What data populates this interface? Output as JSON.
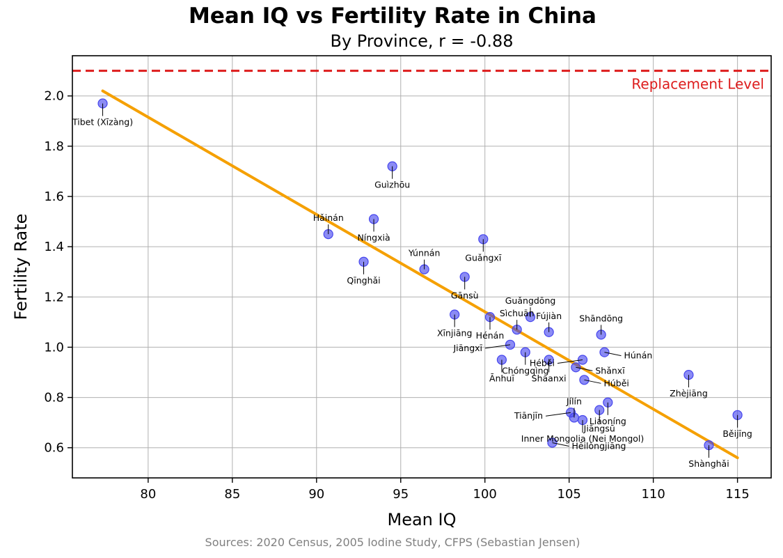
{
  "colors": {
    "points": "#4444ee",
    "trend": "#f5a000",
    "reference": "#dd1c1c",
    "grid": "#b0b0b0",
    "source": "#808080"
  },
  "chart_data": {
    "type": "scatter",
    "title": "Mean IQ vs Fertility Rate in China",
    "subtitle": "By Province, r = -0.88",
    "xlabel": "Mean IQ",
    "ylabel": "Fertility Rate",
    "xlim": [
      75.5,
      117
    ],
    "ylim": [
      0.48,
      2.16
    ],
    "xticks": [
      80,
      85,
      90,
      95,
      100,
      105,
      110,
      115
    ],
    "yticks": [
      0.6,
      0.8,
      1.0,
      1.2,
      1.4,
      1.6,
      1.8,
      2.0
    ],
    "grid": true,
    "reference_line": {
      "y": 2.1,
      "label": "Replacement Level",
      "style": "dashed"
    },
    "trend_line": {
      "x": [
        77.3,
        115
      ],
      "y": [
        2.02,
        0.56
      ]
    },
    "source": "Sources: 2020 Census, 2005 Iodine Study, CFPS (Sebastian Jensen)",
    "points": [
      {
        "name": "Tibet (Xīzàng)",
        "x": 77.3,
        "y": 1.97,
        "label_pos": "below"
      },
      {
        "name": "Guìzhōu",
        "x": 94.5,
        "y": 1.72,
        "label_pos": "below"
      },
      {
        "name": "Hǎinán",
        "x": 90.7,
        "y": 1.45,
        "label_pos": "above"
      },
      {
        "name": "Níngxià",
        "x": 93.4,
        "y": 1.51,
        "label_pos": "below"
      },
      {
        "name": "Qīnghǎi",
        "x": 92.8,
        "y": 1.34,
        "label_pos": "below"
      },
      {
        "name": "Yúnnán",
        "x": 96.4,
        "y": 1.31,
        "label_pos": "above"
      },
      {
        "name": "Guǎngxī",
        "x": 99.9,
        "y": 1.43,
        "label_pos": "below"
      },
      {
        "name": "Gānsù",
        "x": 98.8,
        "y": 1.28,
        "label_pos": "below"
      },
      {
        "name": "Xīnjiāng",
        "x": 98.2,
        "y": 1.13,
        "label_pos": "below"
      },
      {
        "name": "Hénán",
        "x": 100.3,
        "y": 1.12,
        "label_pos": "below"
      },
      {
        "name": "Sìchuān",
        "x": 101.9,
        "y": 1.07,
        "label_pos": "above"
      },
      {
        "name": "Guǎngdōng",
        "x": 102.7,
        "y": 1.12,
        "label_pos": "above"
      },
      {
        "name": "Fújiàn",
        "x": 103.8,
        "y": 1.06,
        "label_pos": "above"
      },
      {
        "name": "Shāndōng",
        "x": 106.9,
        "y": 1.05,
        "label_pos": "above"
      },
      {
        "name": "Jiāngxī",
        "x": 101.5,
        "y": 1.01,
        "label_pos": "left"
      },
      {
        "name": "Húnán",
        "x": 107.1,
        "y": 0.98,
        "label_pos": "right"
      },
      {
        "name": "Chóngqìng",
        "x": 102.4,
        "y": 0.98,
        "label_pos": "below"
      },
      {
        "name": "Ānhuī",
        "x": 101.0,
        "y": 0.95,
        "label_pos": "below"
      },
      {
        "name": "Shaanxi",
        "x": 103.8,
        "y": 0.95,
        "label_pos": "below"
      },
      {
        "name": "Héběi",
        "x": 105.8,
        "y": 0.95,
        "label_pos": "left"
      },
      {
        "name": "Shǎnxī",
        "x": 105.4,
        "y": 0.92,
        "label_pos": "right"
      },
      {
        "name": "Húběi",
        "x": 105.9,
        "y": 0.87,
        "label_pos": "right"
      },
      {
        "name": "Zhèjiāng",
        "x": 112.1,
        "y": 0.89,
        "label_pos": "below"
      },
      {
        "name": "Liáoníng",
        "x": 107.3,
        "y": 0.78,
        "label_pos": "below"
      },
      {
        "name": "Jiāngsū",
        "x": 106.8,
        "y": 0.75,
        "label_pos": "below"
      },
      {
        "name": "Jílín",
        "x": 105.3,
        "y": 0.72,
        "label_pos": "above"
      },
      {
        "name": "Tiānjīn",
        "x": 105.1,
        "y": 0.74,
        "label_pos": "left"
      },
      {
        "name": "Inner Mongolia (Nei Mongol)",
        "x": 105.8,
        "y": 0.71,
        "label_pos": "below"
      },
      {
        "name": "Hēilóngjiāng",
        "x": 104.0,
        "y": 0.62,
        "label_pos": "right"
      },
      {
        "name": "Shànghǎi",
        "x": 113.3,
        "y": 0.61,
        "label_pos": "below"
      },
      {
        "name": "Běijīng",
        "x": 115.0,
        "y": 0.73,
        "label_pos": "below"
      }
    ]
  }
}
